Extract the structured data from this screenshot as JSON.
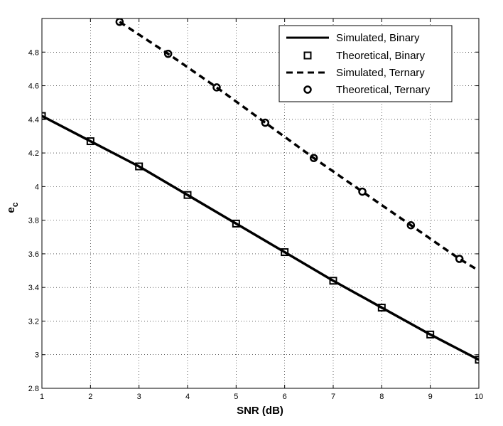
{
  "chart_data": {
    "type": "line",
    "xlabel": "SNR (dB)",
    "ylabel": "e",
    "ylabel_subscript": "c",
    "xlim": [
      1,
      10
    ],
    "ylim": [
      2.8,
      5.0
    ],
    "xticks": [
      "1",
      "2",
      "3",
      "4",
      "5",
      "6",
      "7",
      "8",
      "9",
      "10"
    ],
    "yticks": [
      "2.8",
      "3",
      "3.2",
      "3.4",
      "3.6",
      "3.8",
      "4",
      "4.2",
      "4.4",
      "4.6",
      "4.8"
    ],
    "grid": true,
    "legend_position": "top-right",
    "series": [
      {
        "name": "Simulated, Binary",
        "style": "solid-line",
        "x": [
          1,
          2,
          3,
          4,
          5,
          6,
          7,
          8,
          9,
          10
        ],
        "y": [
          4.42,
          4.27,
          4.12,
          3.95,
          3.78,
          3.61,
          3.44,
          3.28,
          3.12,
          2.97
        ]
      },
      {
        "name": "Theoretical, Binary",
        "style": "square-marker",
        "x": [
          1,
          2,
          3,
          4,
          5,
          6,
          7,
          8,
          9,
          10
        ],
        "y": [
          4.42,
          4.27,
          4.12,
          3.95,
          3.78,
          3.61,
          3.44,
          3.28,
          3.12,
          2.97
        ]
      },
      {
        "name": "Simulated, Ternary",
        "style": "dashed-line",
        "x": [
          2.6,
          3.6,
          4.6,
          5.6,
          6.6,
          7.6,
          8.6,
          9.6,
          10
        ],
        "y": [
          4.98,
          4.79,
          4.59,
          4.38,
          4.17,
          3.97,
          3.77,
          3.57,
          3.5
        ]
      },
      {
        "name": "Theoretical, Ternary",
        "style": "circle-marker",
        "x": [
          2.6,
          3.6,
          4.6,
          5.6,
          6.6,
          7.6,
          8.6,
          9.6
        ],
        "y": [
          4.98,
          4.79,
          4.59,
          4.38,
          4.17,
          3.97,
          3.77,
          3.57
        ]
      }
    ]
  }
}
